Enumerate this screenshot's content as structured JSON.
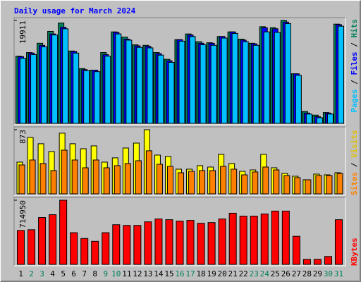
{
  "legend_separator": " / ",
  "chart_data": [
    {
      "type": "bar",
      "title": "Daily usage for March 2024",
      "categories": [
        "1",
        "2",
        "3",
        "4",
        "5",
        "6",
        "7",
        "8",
        "9",
        "10",
        "11",
        "12",
        "13",
        "14",
        "15",
        "16",
        "17",
        "18",
        "19",
        "20",
        "21",
        "22",
        "23",
        "24",
        "25",
        "26",
        "27",
        "28",
        "29",
        "30",
        "31"
      ],
      "category_colors": [
        "#000000",
        "#00805c",
        "#00805c",
        "#000000",
        "#000000",
        "#000000",
        "#000000",
        "#000000",
        "#00805c",
        "#00805c",
        "#000000",
        "#000000",
        "#000000",
        "#000000",
        "#000000",
        "#00805c",
        "#00805c",
        "#000000",
        "#000000",
        "#000000",
        "#000000",
        "#000000",
        "#00805c",
        "#00805c",
        "#000000",
        "#000000",
        "#000000",
        "#000000",
        "#000000",
        "#00805c",
        "#00805c"
      ],
      "legend_anchor": "top",
      "series": [
        {
          "name": "Hits",
          "color": "#00805c",
          "values": [
            13000,
            13700,
            15500,
            17800,
            19400,
            14000,
            10600,
            10300,
            13700,
            17700,
            16700,
            15200,
            15100,
            13700,
            12400,
            16200,
            17300,
            15800,
            15600,
            16800,
            17700,
            16300,
            15500,
            18700,
            18500,
            19911,
            9600,
            2300,
            1600,
            2100,
            19200
          ]
        },
        {
          "name": "Files",
          "color": "#0000ff",
          "values": [
            12900,
            13600,
            15100,
            17300,
            18600,
            13900,
            10400,
            10300,
            13300,
            17600,
            16300,
            15000,
            14900,
            13500,
            12100,
            16200,
            17100,
            15500,
            15500,
            16800,
            17700,
            16100,
            15400,
            18500,
            18300,
            19600,
            9600,
            2000,
            1300,
            2000,
            19100
          ]
        },
        {
          "name": "Pages",
          "color": "#00c0ff",
          "values": [
            12600,
            13300,
            14800,
            17100,
            18300,
            13600,
            10200,
            10000,
            13000,
            17300,
            16100,
            14700,
            14600,
            13200,
            11800,
            15900,
            16800,
            15200,
            15100,
            16500,
            17400,
            15800,
            15100,
            17700,
            17600,
            19300,
            9300,
            1800,
            1100,
            1800,
            18800
          ]
        }
      ],
      "ylim": [
        0,
        19911
      ],
      "yticks": [
        19911
      ]
    },
    {
      "type": "bar",
      "legend_anchor": "bottom",
      "series": [
        {
          "name": "Visits",
          "color": "#ffff00",
          "text_color": "#e0c000",
          "values": [
            432,
            768,
            682,
            576,
            826,
            682,
            614,
            653,
            432,
            490,
            624,
            691,
            873,
            528,
            509,
            336,
            336,
            384,
            365,
            538,
            413,
            307,
            326,
            538,
            355,
            278,
            240,
            192,
            269,
            259,
            288
          ]
        },
        {
          "name": "Sites",
          "color": "#ff8000",
          "values": [
            394,
            461,
            413,
            317,
            595,
            461,
            355,
            461,
            355,
            384,
            413,
            451,
            586,
            403,
            374,
            288,
            307,
            317,
            317,
            374,
            336,
            259,
            298,
            365,
            326,
            250,
            221,
            192,
            250,
            250,
            278
          ]
        }
      ],
      "ylim": [
        0,
        873
      ],
      "yticks": [
        873
      ]
    },
    {
      "type": "bar",
      "legend_anchor": "bottom",
      "series": [
        {
          "name": "KBytes",
          "color": "#ff0000",
          "values": [
            378000,
            386000,
            522000,
            554000,
            714950,
            353000,
            289000,
            257000,
            353000,
            442000,
            434000,
            434000,
            474000,
            506000,
            498000,
            482000,
            490000,
            458000,
            466000,
            506000,
            570000,
            538000,
            538000,
            562000,
            594000,
            594000,
            313000,
            56000,
            56000,
            88000,
            498000
          ]
        }
      ],
      "ylim": [
        0,
        714950
      ],
      "yticks": [
        714950
      ]
    }
  ]
}
